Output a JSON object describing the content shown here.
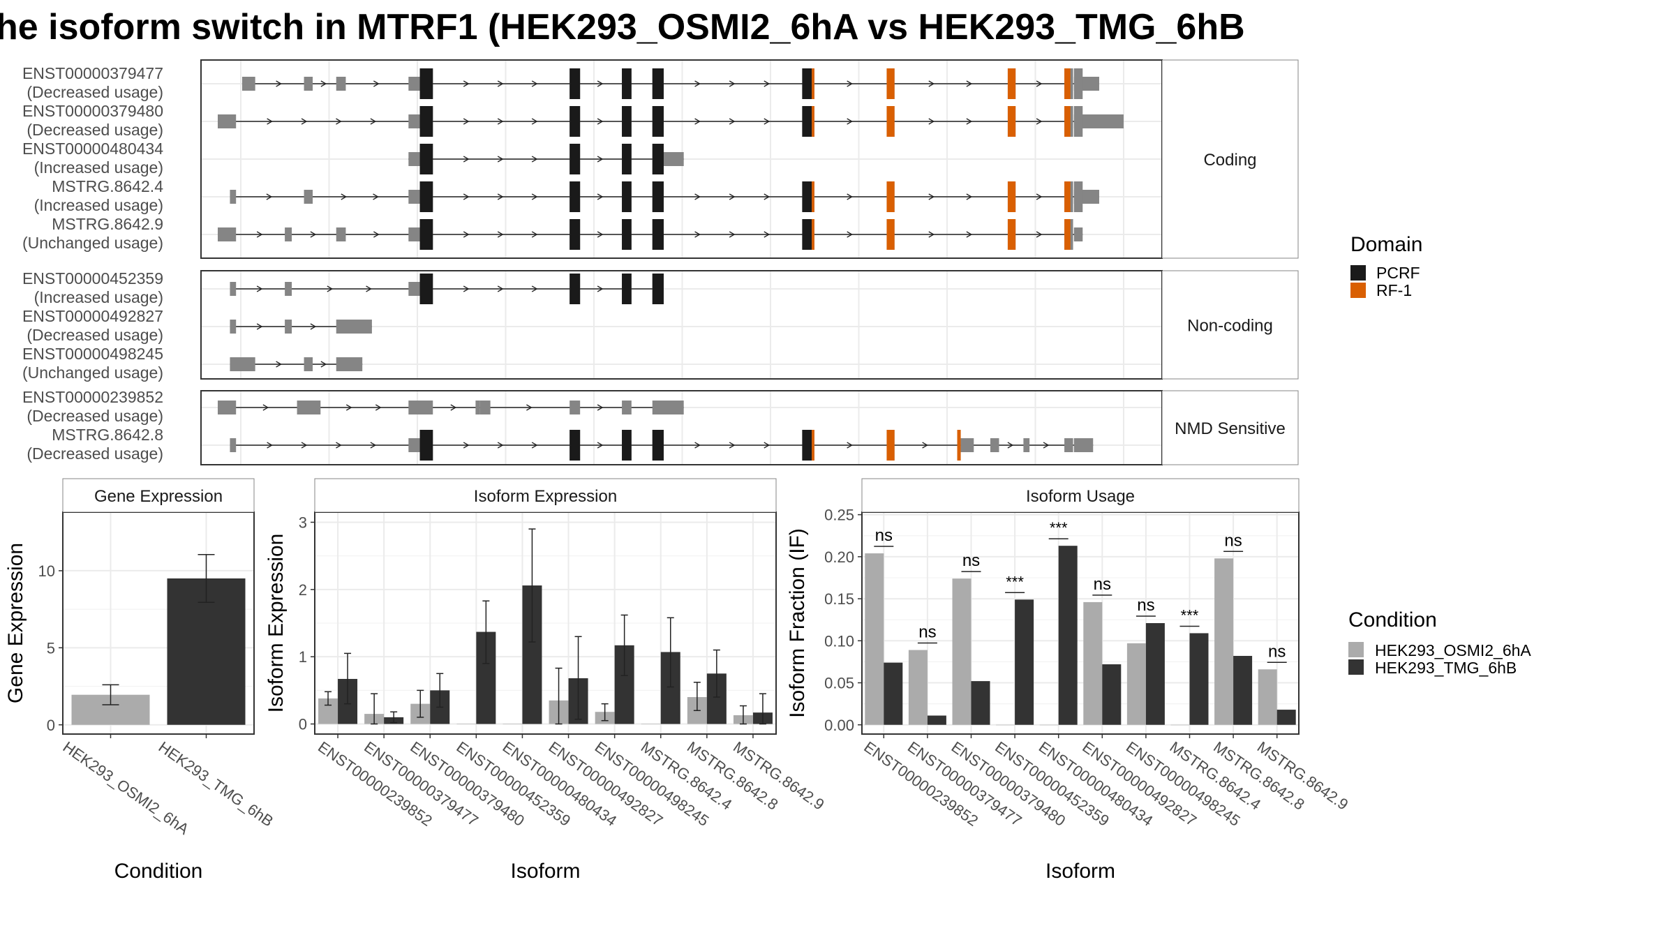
{
  "title": "he isoform switch in MTRF1 (HEK293_OSMI2_6hA vs HEK293_TMG_6hB",
  "colors": {
    "exon": "#858585",
    "pcrf": "#1a1a1a",
    "rf1": "#d95f02",
    "osmi": "#ababab",
    "tmg": "#333333",
    "grid": "#ebebeb",
    "strip": "#ffffff"
  },
  "legend": {
    "domain": {
      "title": "Domain",
      "items": [
        {
          "label": "PCRF"
        },
        {
          "label": "RF-1"
        }
      ]
    },
    "condition": {
      "title": "Condition",
      "items": [
        {
          "label": "HEK293_OSMI2_6hA"
        },
        {
          "label": "HEK293_TMG_6hB"
        }
      ]
    }
  },
  "structure": {
    "groups": [
      {
        "label": "Coding",
        "transcripts": [
          {
            "id": "ENST00000379477",
            "note": "(Decreased usage)",
            "utr": [
              [
                0.028,
                0.043
              ],
              [
                0.099,
                0.109
              ],
              [
                0.136,
                0.147
              ],
              [
                0.219,
                0.232
              ],
              [
                0.983,
                1.012
              ]
            ],
            "cds": [
              [
                0.232,
                0.247
              ],
              [
                0.404,
                0.416
              ],
              [
                0.464,
                0.475
              ],
              [
                0.499,
                0.512
              ],
              [
                0.671,
                0.685
              ],
              [
                0.768,
                0.777
              ],
              [
                0.907,
                0.916
              ],
              [
                0.972,
                0.982
              ],
              [
                0.983,
                0.993
              ]
            ],
            "dom": [
              [
                0.232,
                0.247,
                "pcrf"
              ],
              [
                0.404,
                0.416,
                "pcrf"
              ],
              [
                0.464,
                0.475,
                "pcrf"
              ],
              [
                0.499,
                0.512,
                "pcrf"
              ],
              [
                0.671,
                0.682,
                "pcrf"
              ],
              [
                0.682,
                0.685,
                "rf1"
              ],
              [
                0.768,
                0.777,
                "rf1"
              ],
              [
                0.907,
                0.916,
                "rf1"
              ],
              [
                0.972,
                0.979,
                "rf1"
              ]
            ]
          },
          {
            "id": "ENST00000379480",
            "note": "(Decreased usage)",
            "utr": [
              [
                0.0,
                0.021
              ],
              [
                0.219,
                0.232
              ],
              [
                0.983,
                1.04
              ]
            ],
            "cds": [
              [
                0.232,
                0.247
              ],
              [
                0.404,
                0.416
              ],
              [
                0.464,
                0.475
              ],
              [
                0.499,
                0.512
              ],
              [
                0.671,
                0.685
              ],
              [
                0.768,
                0.777
              ],
              [
                0.907,
                0.916
              ],
              [
                0.972,
                0.982
              ],
              [
                0.983,
                0.993
              ]
            ],
            "dom": [
              [
                0.232,
                0.247,
                "pcrf"
              ],
              [
                0.404,
                0.416,
                "pcrf"
              ],
              [
                0.464,
                0.475,
                "pcrf"
              ],
              [
                0.499,
                0.512,
                "pcrf"
              ],
              [
                0.671,
                0.682,
                "pcrf"
              ],
              [
                0.682,
                0.685,
                "rf1"
              ],
              [
                0.768,
                0.777,
                "rf1"
              ],
              [
                0.907,
                0.916,
                "rf1"
              ],
              [
                0.972,
                0.979,
                "rf1"
              ]
            ]
          },
          {
            "id": "ENST00000480434",
            "note": "(Increased usage)",
            "utr": [
              [
                0.219,
                0.232
              ],
              [
                0.512,
                0.535
              ]
            ],
            "cds": [
              [
                0.232,
                0.247
              ],
              [
                0.404,
                0.416
              ],
              [
                0.464,
                0.475
              ],
              [
                0.499,
                0.512
              ]
            ],
            "dom": [
              [
                0.232,
                0.247,
                "pcrf"
              ],
              [
                0.404,
                0.416,
                "pcrf"
              ],
              [
                0.464,
                0.475,
                "pcrf"
              ],
              [
                0.499,
                0.512,
                "pcrf"
              ]
            ]
          },
          {
            "id": "MSTRG.8642.4",
            "note": "(Increased usage)",
            "utr": [
              [
                0.014,
                0.021
              ],
              [
                0.099,
                0.109
              ],
              [
                0.219,
                0.232
              ],
              [
                0.983,
                1.012
              ]
            ],
            "cds": [
              [
                0.232,
                0.247
              ],
              [
                0.404,
                0.416
              ],
              [
                0.464,
                0.475
              ],
              [
                0.499,
                0.512
              ],
              [
                0.671,
                0.685
              ],
              [
                0.768,
                0.777
              ],
              [
                0.907,
                0.916
              ],
              [
                0.972,
                0.982
              ],
              [
                0.983,
                0.993
              ]
            ],
            "dom": [
              [
                0.232,
                0.247,
                "pcrf"
              ],
              [
                0.404,
                0.416,
                "pcrf"
              ],
              [
                0.464,
                0.475,
                "pcrf"
              ],
              [
                0.499,
                0.512,
                "pcrf"
              ],
              [
                0.671,
                0.682,
                "pcrf"
              ],
              [
                0.682,
                0.685,
                "rf1"
              ],
              [
                0.768,
                0.777,
                "rf1"
              ],
              [
                0.907,
                0.916,
                "rf1"
              ],
              [
                0.972,
                0.979,
                "rf1"
              ]
            ]
          },
          {
            "id": "MSTRG.8642.9",
            "note": "(Unchanged usage)",
            "utr": [
              [
                0.0,
                0.021
              ],
              [
                0.077,
                0.085
              ],
              [
                0.136,
                0.147
              ],
              [
                0.219,
                0.232
              ],
              [
                0.983,
                0.993
              ]
            ],
            "cds": [
              [
                0.232,
                0.247
              ],
              [
                0.404,
                0.416
              ],
              [
                0.464,
                0.475
              ],
              [
                0.499,
                0.512
              ],
              [
                0.671,
                0.685
              ],
              [
                0.768,
                0.777
              ],
              [
                0.907,
                0.916
              ],
              [
                0.972,
                0.982
              ]
            ],
            "dom": [
              [
                0.232,
                0.247,
                "pcrf"
              ],
              [
                0.404,
                0.416,
                "pcrf"
              ],
              [
                0.464,
                0.475,
                "pcrf"
              ],
              [
                0.499,
                0.512,
                "pcrf"
              ],
              [
                0.671,
                0.682,
                "pcrf"
              ],
              [
                0.682,
                0.685,
                "rf1"
              ],
              [
                0.768,
                0.777,
                "rf1"
              ],
              [
                0.907,
                0.916,
                "rf1"
              ],
              [
                0.972,
                0.979,
                "rf1"
              ]
            ]
          }
        ]
      },
      {
        "label": "Non-coding",
        "transcripts": [
          {
            "id": "ENST00000452359",
            "note": "(Increased usage)",
            "utr": [
              [
                0.014,
                0.021
              ],
              [
                0.077,
                0.085
              ],
              [
                0.219,
                0.232
              ]
            ],
            "cds": [
              [
                0.232,
                0.247
              ],
              [
                0.404,
                0.416
              ],
              [
                0.464,
                0.475
              ],
              [
                0.499,
                0.512
              ]
            ],
            "dom": [
              [
                0.232,
                0.247,
                "pcrf"
              ],
              [
                0.404,
                0.416,
                "pcrf"
              ],
              [
                0.464,
                0.475,
                "pcrf"
              ],
              [
                0.499,
                0.512,
                "pcrf"
              ]
            ]
          },
          {
            "id": "ENST00000492827",
            "note": "(Decreased usage)",
            "utr": [
              [
                0.014,
                0.021
              ],
              [
                0.077,
                0.085
              ],
              [
                0.136,
                0.177
              ]
            ],
            "cds": [],
            "dom": []
          },
          {
            "id": "ENST00000498245",
            "note": "(Unchanged usage)",
            "utr": [
              [
                0.014,
                0.043
              ],
              [
                0.099,
                0.109
              ],
              [
                0.136,
                0.166
              ]
            ],
            "cds": [],
            "dom": []
          }
        ]
      },
      {
        "label": "NMD Sensitive",
        "transcripts": [
          {
            "id": "ENST00000239852",
            "note": "(Decreased usage)",
            "utr": [
              [
                0.0,
                0.021
              ],
              [
                0.091,
                0.118
              ],
              [
                0.219,
                0.247
              ],
              [
                0.296,
                0.301
              ],
              [
                0.301,
                0.313
              ],
              [
                0.404,
                0.416
              ],
              [
                0.464,
                0.475
              ],
              [
                0.499,
                0.535
              ]
            ],
            "cds": [],
            "dom": []
          },
          {
            "id": "MSTRG.8642.8",
            "note": "(Decreased usage)",
            "utr": [
              [
                0.014,
                0.021
              ],
              [
                0.219,
                0.232
              ],
              [
                0.853,
                0.868
              ],
              [
                0.887,
                0.897
              ],
              [
                0.925,
                0.932
              ],
              [
                0.972,
                0.982
              ],
              [
                0.983,
                1.005
              ]
            ],
            "cds": [
              [
                0.232,
                0.247
              ],
              [
                0.404,
                0.416
              ],
              [
                0.464,
                0.475
              ],
              [
                0.499,
                0.512
              ],
              [
                0.671,
                0.685
              ],
              [
                0.768,
                0.777
              ],
              [
                0.849,
                0.853
              ]
            ],
            "dom": [
              [
                0.232,
                0.247,
                "pcrf"
              ],
              [
                0.404,
                0.416,
                "pcrf"
              ],
              [
                0.464,
                0.475,
                "pcrf"
              ],
              [
                0.499,
                0.512,
                "pcrf"
              ],
              [
                0.671,
                0.682,
                "pcrf"
              ],
              [
                0.682,
                0.685,
                "rf1"
              ],
              [
                0.768,
                0.777,
                "rf1"
              ],
              [
                0.849,
                0.853,
                "rf1"
              ]
            ]
          }
        ]
      }
    ]
  },
  "chart_data": [
    {
      "type": "bar",
      "title": "Gene Expression",
      "xlabel": "Condition",
      "ylabel": "Gene Expression",
      "categories": [
        "HEK293_OSMI2_6hA",
        "HEK293_TMG_6hB"
      ],
      "values": [
        1.95,
        9.5
      ],
      "err_low": [
        1.3,
        7.95
      ],
      "err_high": [
        2.6,
        11.05
      ],
      "yticks": [
        "0",
        "5",
        "10"
      ],
      "ylim": [
        -0.6,
        13.8
      ]
    },
    {
      "type": "bar",
      "title": "Isoform Expression",
      "xlabel": "Isoform",
      "ylabel": "Isoform Expression",
      "categories": [
        "ENST00000239852",
        "ENST00000379477",
        "ENST00000379480",
        "ENST00000452359",
        "ENST00000480434",
        "ENST00000492827",
        "ENST00000498245",
        "MSTRG.8642.4",
        "MSTRG.8642.8",
        "MSTRG.8642.9"
      ],
      "series": [
        {
          "name": "HEK293_OSMI2_6hA",
          "values": [
            0.38,
            0.15,
            0.3,
            0.0,
            0.0,
            0.35,
            0.18,
            0.0,
            0.4,
            0.13
          ],
          "err_low": [
            0.28,
            0.0,
            0.1,
            0.0,
            0.0,
            0.0,
            0.05,
            0.0,
            0.2,
            0.0
          ],
          "err_high": [
            0.48,
            0.45,
            0.5,
            0.0,
            0.0,
            0.83,
            0.3,
            0.0,
            0.62,
            0.27
          ]
        },
        {
          "name": "HEK293_TMG_6hB",
          "values": [
            0.67,
            0.1,
            0.5,
            1.37,
            2.06,
            0.68,
            1.17,
            1.07,
            0.75,
            0.17
          ],
          "err_low": [
            0.3,
            0.02,
            0.25,
            0.9,
            1.22,
            0.07,
            0.72,
            0.55,
            0.4,
            0.0
          ],
          "err_high": [
            1.05,
            0.18,
            0.75,
            1.83,
            2.9,
            1.3,
            1.62,
            1.58,
            1.1,
            0.45
          ]
        }
      ],
      "yticks": [
        "0",
        "1",
        "2",
        "3"
      ],
      "ylim": [
        -0.15,
        3.15
      ]
    },
    {
      "type": "bar",
      "title": "Isoform Usage",
      "xlabel": "Isoform",
      "ylabel": "Isoform Fraction (IF)",
      "categories": [
        "ENST00000239852",
        "ENST00000379477",
        "ENST00000379480",
        "ENST00000452359",
        "ENST00000480434",
        "ENST00000492827",
        "ENST00000498245",
        "MSTRG.8642.4",
        "MSTRG.8642.8",
        "MSTRG.8642.9"
      ],
      "series": [
        {
          "name": "HEK293_OSMI2_6hA",
          "values": [
            0.204,
            0.089,
            0.174,
            0.0,
            0.0,
            0.146,
            0.097,
            0.0,
            0.198,
            0.066
          ]
        },
        {
          "name": "HEK293_TMG_6hB",
          "values": [
            0.074,
            0.011,
            0.052,
            0.149,
            0.213,
            0.072,
            0.121,
            0.109,
            0.082,
            0.018
          ]
        }
      ],
      "significance": [
        "ns",
        "ns",
        "ns",
        "***",
        "***",
        "ns",
        "ns",
        "***",
        "ns",
        "ns"
      ],
      "yticks": [
        "0.00",
        "0.05",
        "0.10",
        "0.15",
        "0.20",
        "0.25"
      ],
      "ylim": [
        -0.011,
        0.253
      ]
    }
  ]
}
